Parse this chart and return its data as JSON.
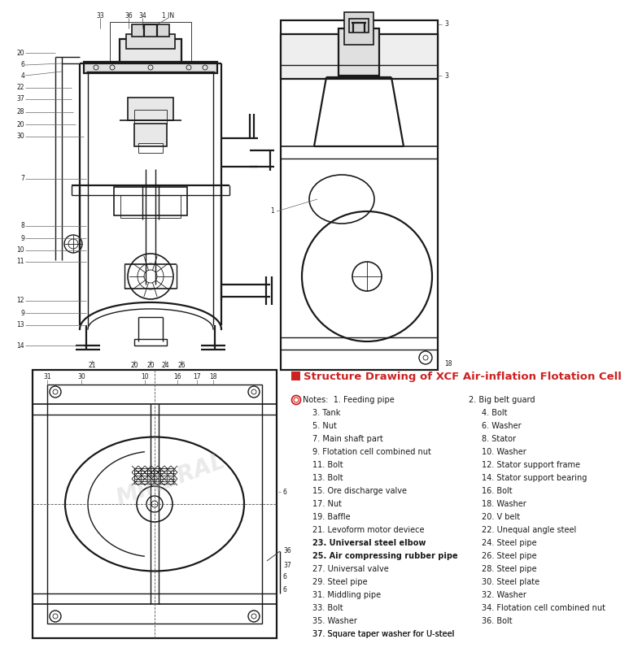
{
  "title": "Structure Drawing of XCF Air-inflation Flotation Cell",
  "bg_color": "#ffffff",
  "line_color": "#1a1a1a",
  "label_color": "#1a1a1a",
  "title_color": "#cc2222",
  "notes_left_col": [
    "1. Feeding pipe",
    "3. Tank",
    "5. Nut",
    "7. Main shaft part",
    "9. Flotation cell combined nut",
    "11. Bolt",
    "13. Bolt",
    "15. Ore discharge valve",
    "17. Nut",
    "19. Baffle",
    "21. Levoform motor deviece",
    "23. Universal steel elbow",
    "25. Air compressing rubber pipe",
    "27. Universal valve",
    "29. Steel pipe",
    "31. Middling pipe",
    "33. Bolt",
    "35. Washer",
    "37. Square taper washer for U-steel"
  ],
  "notes_right_col": [
    "2. Big belt guard",
    "4. Bolt",
    "6. Washer",
    "8. Stator",
    "10. Washer",
    "12. Stator support frame",
    "14. Stator support bearing",
    "16. Bolt",
    "18. Washer",
    "20. V belt",
    "22. Unequal angle steel",
    "24. Steel pipe",
    "26. Steel pipe",
    "28. Steel pipe",
    "30. Steel plate",
    "32. Washer",
    "34. Flotation cell combined nut",
    "36. Bolt",
    ""
  ],
  "bold_items": [
    23,
    25
  ],
  "left_side_nums": [
    "20",
    "6",
    "4",
    "22",
    "37",
    "28",
    "20",
    "30",
    "7",
    "8",
    "9",
    "10",
    "11",
    "12",
    "13",
    "14"
  ],
  "top_nums": [
    "33",
    "36",
    "34",
    "1 IN"
  ],
  "bottom_nums": [
    "21",
    "20",
    "20",
    "24",
    "26"
  ],
  "plan_top_nums": [
    "31",
    "30",
    "10",
    "16",
    "17",
    "18"
  ],
  "right_side_nums": [
    "3",
    "3",
    "18"
  ]
}
